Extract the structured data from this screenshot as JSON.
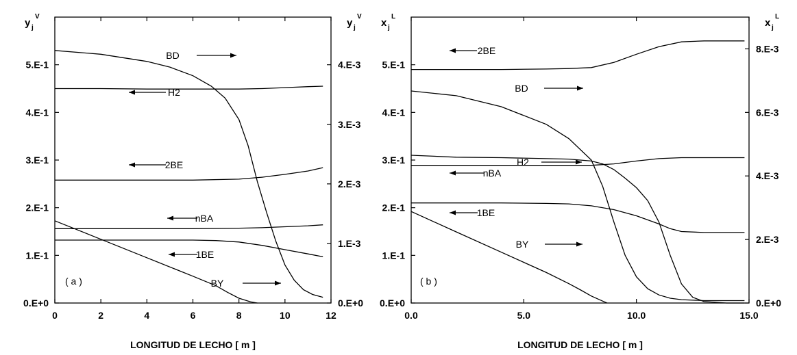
{
  "chart_data": [
    {
      "type": "line",
      "panel_label": "( a )",
      "xlabel": "LONGITUD DE LECHO [ m ]",
      "ylabel_left": {
        "base": "y",
        "sub": "j",
        "sup": "V"
      },
      "ylabel_right": {
        "base": "y",
        "sub": "j",
        "sup": "V"
      },
      "xlim": [
        0,
        12
      ],
      "ylim_left": [
        0,
        0.6
      ],
      "ylim_right": [
        0,
        0.0048
      ],
      "x_ticks": [
        {
          "v": 0,
          "label": "0"
        },
        {
          "v": 2,
          "label": "2"
        },
        {
          "v": 4,
          "label": "4"
        },
        {
          "v": 6,
          "label": "6"
        },
        {
          "v": 8,
          "label": "8"
        },
        {
          "v": 10,
          "label": "10"
        },
        {
          "v": 12,
          "label": "12"
        }
      ],
      "y_ticks_left": [
        {
          "v": 0.0,
          "label": "0.E+0"
        },
        {
          "v": 0.1,
          "label": "1.E-1"
        },
        {
          "v": 0.2,
          "label": "2.E-1"
        },
        {
          "v": 0.3,
          "label": "3.E-1"
        },
        {
          "v": 0.4,
          "label": "4.E-1"
        },
        {
          "v": 0.5,
          "label": "5.E-1"
        }
      ],
      "y_ticks_right": [
        {
          "v": 0.0,
          "label": "0.E+0"
        },
        {
          "v": 0.001,
          "label": "1.E-3"
        },
        {
          "v": 0.002,
          "label": "2.E-3"
        },
        {
          "v": 0.003,
          "label": "3.E-3"
        },
        {
          "v": 0.004,
          "label": "4.E-3"
        }
      ],
      "grid": false,
      "series": [
        {
          "name": "BD",
          "axis": "left",
          "arrow": "right",
          "x": [
            0,
            2,
            4,
            5,
            6,
            6.8,
            7.4,
            8.0,
            8.4,
            8.8,
            9.2,
            9.6,
            10.0,
            10.4,
            10.8,
            11.2,
            11.65
          ],
          "y": [
            0.53,
            0.522,
            0.507,
            0.495,
            0.477,
            0.455,
            0.43,
            0.385,
            0.33,
            0.255,
            0.19,
            0.13,
            0.08,
            0.048,
            0.028,
            0.018,
            0.012
          ]
        },
        {
          "name": "H2",
          "axis": "left",
          "arrow": "left",
          "x": [
            0,
            2,
            4,
            6,
            8,
            9,
            10,
            11,
            11.65
          ],
          "y": [
            0.45,
            0.45,
            0.449,
            0.449,
            0.449,
            0.45,
            0.452,
            0.454,
            0.455
          ]
        },
        {
          "name": "2BE",
          "axis": "left",
          "arrow": "left",
          "x": [
            0,
            2,
            4,
            6,
            8,
            9,
            10,
            11,
            11.65
          ],
          "y": [
            0.258,
            0.258,
            0.258,
            0.258,
            0.26,
            0.264,
            0.27,
            0.277,
            0.284
          ]
        },
        {
          "name": "nBA",
          "axis": "left",
          "arrow": "left",
          "x": [
            0,
            2,
            4,
            6,
            8,
            9,
            10,
            11,
            11.65
          ],
          "y": [
            0.156,
            0.156,
            0.156,
            0.156,
            0.157,
            0.158,
            0.16,
            0.162,
            0.164
          ]
        },
        {
          "name": "1BE",
          "axis": "left",
          "arrow": "left",
          "x": [
            0,
            2,
            4,
            6,
            7,
            8,
            9,
            10,
            11,
            11.65
          ],
          "y": [
            0.132,
            0.132,
            0.132,
            0.132,
            0.131,
            0.128,
            0.121,
            0.112,
            0.103,
            0.097
          ]
        },
        {
          "name": "BY",
          "axis": "right",
          "arrow": "right",
          "x": [
            0,
            2,
            4,
            6,
            7,
            7.5,
            8.0,
            8.5,
            8.8
          ],
          "y": [
            0.00138,
            0.00107,
            0.00076,
            0.00045,
            0.00029,
            0.00018,
            8e-05,
            2e-05,
            0.0
          ]
        }
      ]
    },
    {
      "type": "line",
      "panel_label": "( b )",
      "xlabel": "LONGITUD DE LECHO [ m ]",
      "ylabel_left": {
        "base": "x",
        "sub": "j",
        "sup": "L"
      },
      "ylabel_right": {
        "base": "x",
        "sub": "j",
        "sup": "L"
      },
      "xlim": [
        0,
        15
      ],
      "ylim_left": [
        0,
        0.6
      ],
      "ylim_right": [
        0,
        0.009
      ],
      "x_ticks": [
        {
          "v": 0,
          "label": "0.0"
        },
        {
          "v": 5,
          "label": "5.0"
        },
        {
          "v": 10,
          "label": "10.0"
        },
        {
          "v": 15,
          "label": "15.0"
        }
      ],
      "y_ticks_left": [
        {
          "v": 0.0,
          "label": "0.E+0"
        },
        {
          "v": 0.1,
          "label": "1.E-1"
        },
        {
          "v": 0.2,
          "label": "2.E-1"
        },
        {
          "v": 0.3,
          "label": "3.E-1"
        },
        {
          "v": 0.4,
          "label": "4.E-1"
        },
        {
          "v": 0.5,
          "label": "5.E-1"
        }
      ],
      "y_ticks_right": [
        {
          "v": 0.0,
          "label": "0.E+0"
        },
        {
          "v": 0.002,
          "label": "2.E-3"
        },
        {
          "v": 0.004,
          "label": "4.E-3"
        },
        {
          "v": 0.006,
          "label": "6.E-3"
        },
        {
          "v": 0.008,
          "label": "8.E-3"
        }
      ],
      "grid": false,
      "series": [
        {
          "name": "2BE",
          "axis": "left",
          "arrow": "left",
          "x": [
            0,
            2,
            4,
            6,
            7,
            8,
            9,
            10,
            11,
            12,
            13,
            14,
            14.8
          ],
          "y": [
            0.49,
            0.49,
            0.49,
            0.491,
            0.492,
            0.494,
            0.505,
            0.522,
            0.538,
            0.548,
            0.55,
            0.55,
            0.55
          ]
        },
        {
          "name": "BD",
          "axis": "left",
          "arrow": "right",
          "x": [
            0,
            2,
            4,
            6,
            7,
            8,
            8.5,
            9.0,
            9.5,
            10.0,
            10.5,
            11.0,
            11.5,
            12.0,
            13.0,
            14.0,
            14.8
          ],
          "y": [
            0.445,
            0.435,
            0.412,
            0.375,
            0.345,
            0.3,
            0.245,
            0.17,
            0.1,
            0.055,
            0.03,
            0.017,
            0.01,
            0.007,
            0.005,
            0.005,
            0.005
          ]
        },
        {
          "name": "H2",
          "axis": "left",
          "arrow": "right",
          "x": [
            0,
            2,
            4,
            6,
            7,
            8,
            8.5,
            9.0,
            9.5,
            10.0,
            10.5,
            11.0,
            11.5,
            12.0,
            12.5,
            13.0,
            14.0,
            14.8
          ],
          "y": [
            0.31,
            0.306,
            0.305,
            0.303,
            0.302,
            0.298,
            0.292,
            0.28,
            0.262,
            0.242,
            0.215,
            0.17,
            0.1,
            0.04,
            0.012,
            0.003,
            0.0,
            0.0
          ]
        },
        {
          "name": "nBA",
          "axis": "left",
          "arrow": "left",
          "x": [
            0,
            2,
            4,
            6,
            8,
            9,
            10,
            11,
            12,
            13,
            14,
            14.8
          ],
          "y": [
            0.289,
            0.289,
            0.289,
            0.289,
            0.289,
            0.292,
            0.298,
            0.303,
            0.305,
            0.305,
            0.305,
            0.305
          ]
        },
        {
          "name": "1BE",
          "axis": "left",
          "arrow": "left",
          "x": [
            0,
            2,
            4,
            6,
            7,
            8,
            9,
            10,
            11,
            11.5,
            12,
            13,
            14,
            14.8
          ],
          "y": [
            0.21,
            0.21,
            0.21,
            0.209,
            0.208,
            0.204,
            0.196,
            0.183,
            0.166,
            0.156,
            0.15,
            0.148,
            0.148,
            0.148
          ]
        },
        {
          "name": "BY",
          "axis": "right",
          "arrow": "right",
          "x": [
            0,
            2,
            4,
            6,
            7,
            7.5,
            8.0,
            8.5,
            8.7
          ],
          "y": [
            0.00288,
            0.00224,
            0.0016,
            0.00096,
            0.00061,
            0.00042,
            0.00022,
            6e-05,
            0.0
          ]
        }
      ]
    }
  ]
}
